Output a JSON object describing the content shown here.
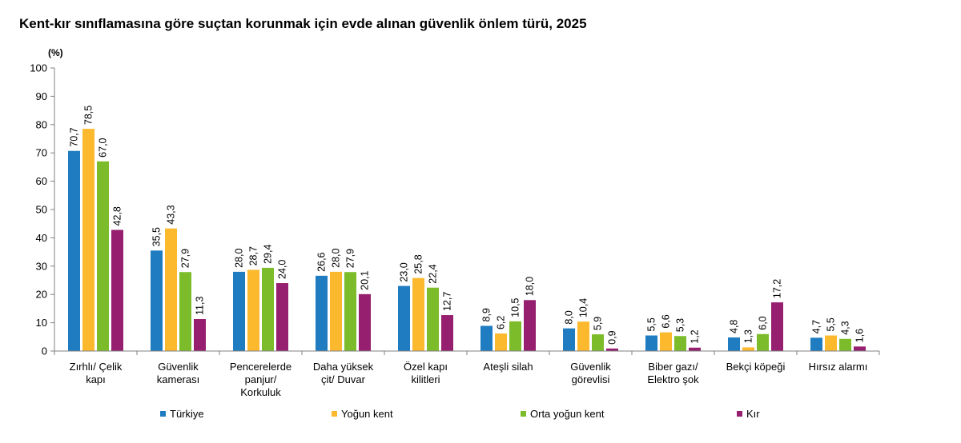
{
  "chart_data": {
    "type": "bar",
    "title": "Kent-kır sınıflamasına göre suçtan korunmak için evde alınan güvenlik önlem türü, 2025",
    "ylabel": "(%)",
    "xlabel": "",
    "ylim": [
      0,
      100
    ],
    "yticks": [
      "0",
      "10",
      "20",
      "30",
      "40",
      "50",
      "60",
      "70",
      "80",
      "90",
      "100"
    ],
    "categories": [
      [
        "Zırhlı/ Çelik",
        "kapı"
      ],
      [
        "Güvenlik",
        "kamerası"
      ],
      [
        "Pencerelerde",
        "panjur/",
        "Korkuluk"
      ],
      [
        "Daha yüksek",
        "çit/ Duvar"
      ],
      [
        "Özel kapı",
        "kilitleri"
      ],
      [
        "Ateşli silah"
      ],
      [
        "Güvenlik",
        "görevlisi"
      ],
      [
        "Biber gazı/",
        "Elektro şok"
      ],
      [
        "Bekçi köpeği"
      ],
      [
        "Hırsız alarmı"
      ]
    ],
    "series": [
      {
        "name": "Türkiye",
        "color": "#1f7cc1",
        "values": [
          70.7,
          35.5,
          28.0,
          26.6,
          23.0,
          8.9,
          8.0,
          5.5,
          4.8,
          4.7
        ],
        "labels": [
          "70,7",
          "35,5",
          "28,0",
          "26,6",
          "23,0",
          "8,9",
          "8,0",
          "5,5",
          "4,8",
          "4,7"
        ]
      },
      {
        "name": "Yoğun kent",
        "color": "#fdb92e",
        "values": [
          78.5,
          43.3,
          28.7,
          28.0,
          25.8,
          6.2,
          10.4,
          6.6,
          1.3,
          5.5
        ],
        "labels": [
          "78,5",
          "43,3",
          "28,7",
          "28,0",
          "25,8",
          "6,2",
          "10,4",
          "6,6",
          "1,3",
          "5,5"
        ]
      },
      {
        "name": "Orta yoğun kent",
        "color": "#7cbc2a",
        "values": [
          67.0,
          27.9,
          29.4,
          27.9,
          22.4,
          10.5,
          5.9,
          5.3,
          6.0,
          4.3
        ],
        "labels": [
          "67,0",
          "27,9",
          "29,4",
          "27,9",
          "22,4",
          "10,5",
          "5,9",
          "5,3",
          "6,0",
          "4,3"
        ]
      },
      {
        "name": "Kır",
        "color": "#96206f",
        "values": [
          42.8,
          11.3,
          24.0,
          20.1,
          12.7,
          18.0,
          0.9,
          1.2,
          17.2,
          1.6
        ],
        "labels": [
          "42,8",
          "11,3",
          "24,0",
          "20,1",
          "12,7",
          "18,0",
          "0,9",
          "1,2",
          "17,2",
          "1,6"
        ]
      }
    ],
    "legend_position": "bottom",
    "grid": false
  }
}
